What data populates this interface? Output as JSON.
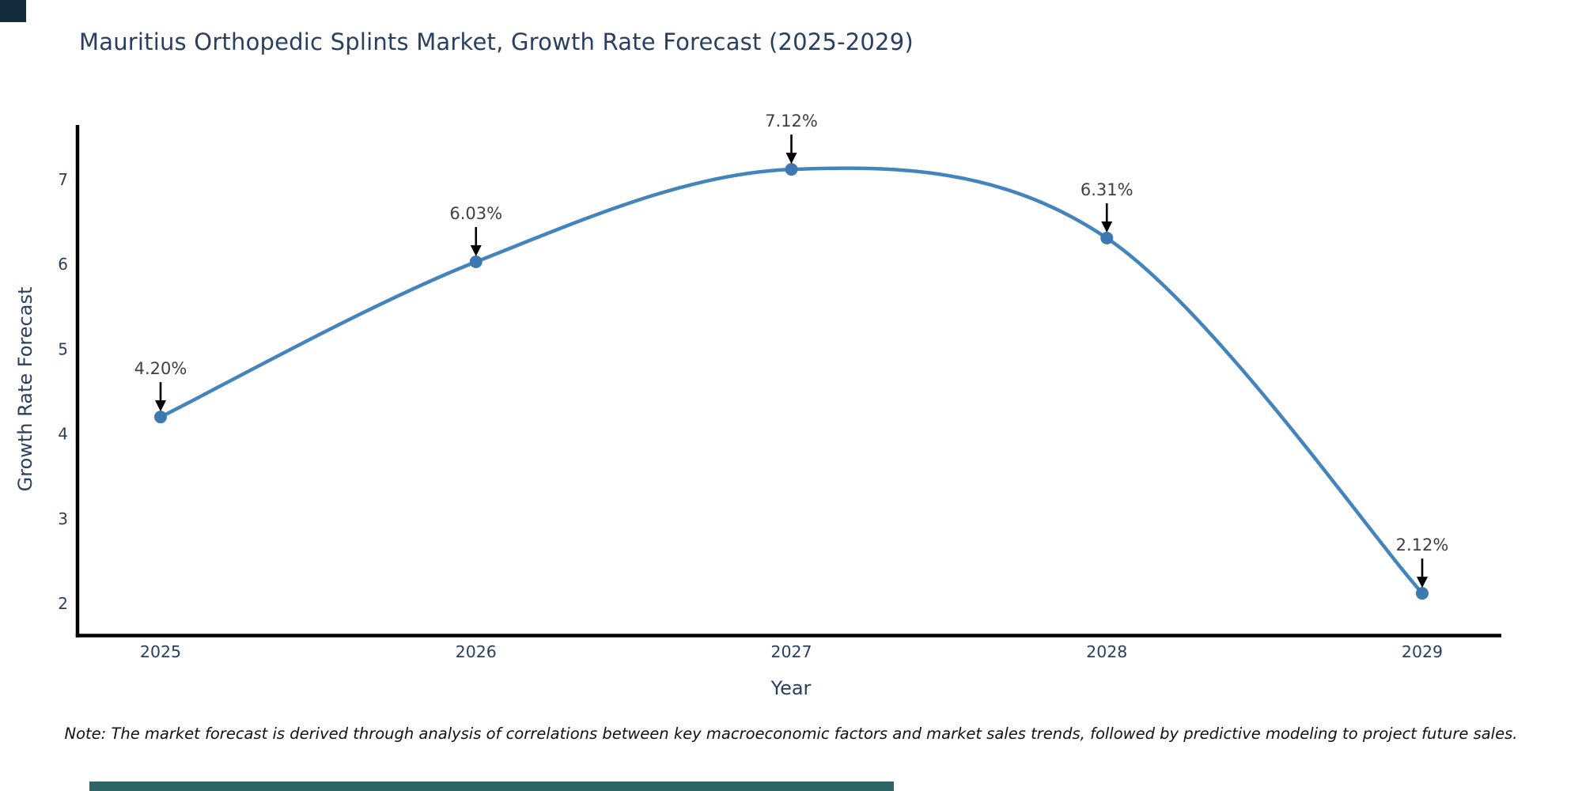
{
  "page": {
    "background": "#ffffff",
    "note": "Note: The market forecast is derived through analysis of correlations between key macroeconomic factors and market sales trends, followed by predictive modeling to project future sales."
  },
  "chart_data": {
    "type": "line",
    "line_shape": "spline",
    "title": "Mauritius Orthopedic Splints Market, Growth Rate Forecast (2025-2029)",
    "xlabel": "Year",
    "ylabel": "Growth Rate Forecast",
    "categories": [
      "2025",
      "2026",
      "2027",
      "2028",
      "2029"
    ],
    "values": [
      4.2,
      6.03,
      7.12,
      6.31,
      2.12
    ],
    "point_labels": [
      "4.20%",
      "6.03%",
      "7.12%",
      "6.31%",
      "2.12%"
    ],
    "yticks": [
      2,
      3,
      4,
      5,
      6,
      7
    ],
    "ylim": [
      1.63,
      7.63
    ],
    "grid": false,
    "legend": "none",
    "annotations": "value labels with downward arrows above each point",
    "colors": {
      "line": "#4384bd",
      "marker": "#3d79b0",
      "axis": "#000000",
      "tick_text": "#2a3f5f",
      "title_text": "#2a3f5f",
      "annotation_text": "#404040",
      "annotation_arrow": "#000000",
      "corner_block": "#132b3c",
      "bottom_bar": "#2e6665"
    }
  }
}
